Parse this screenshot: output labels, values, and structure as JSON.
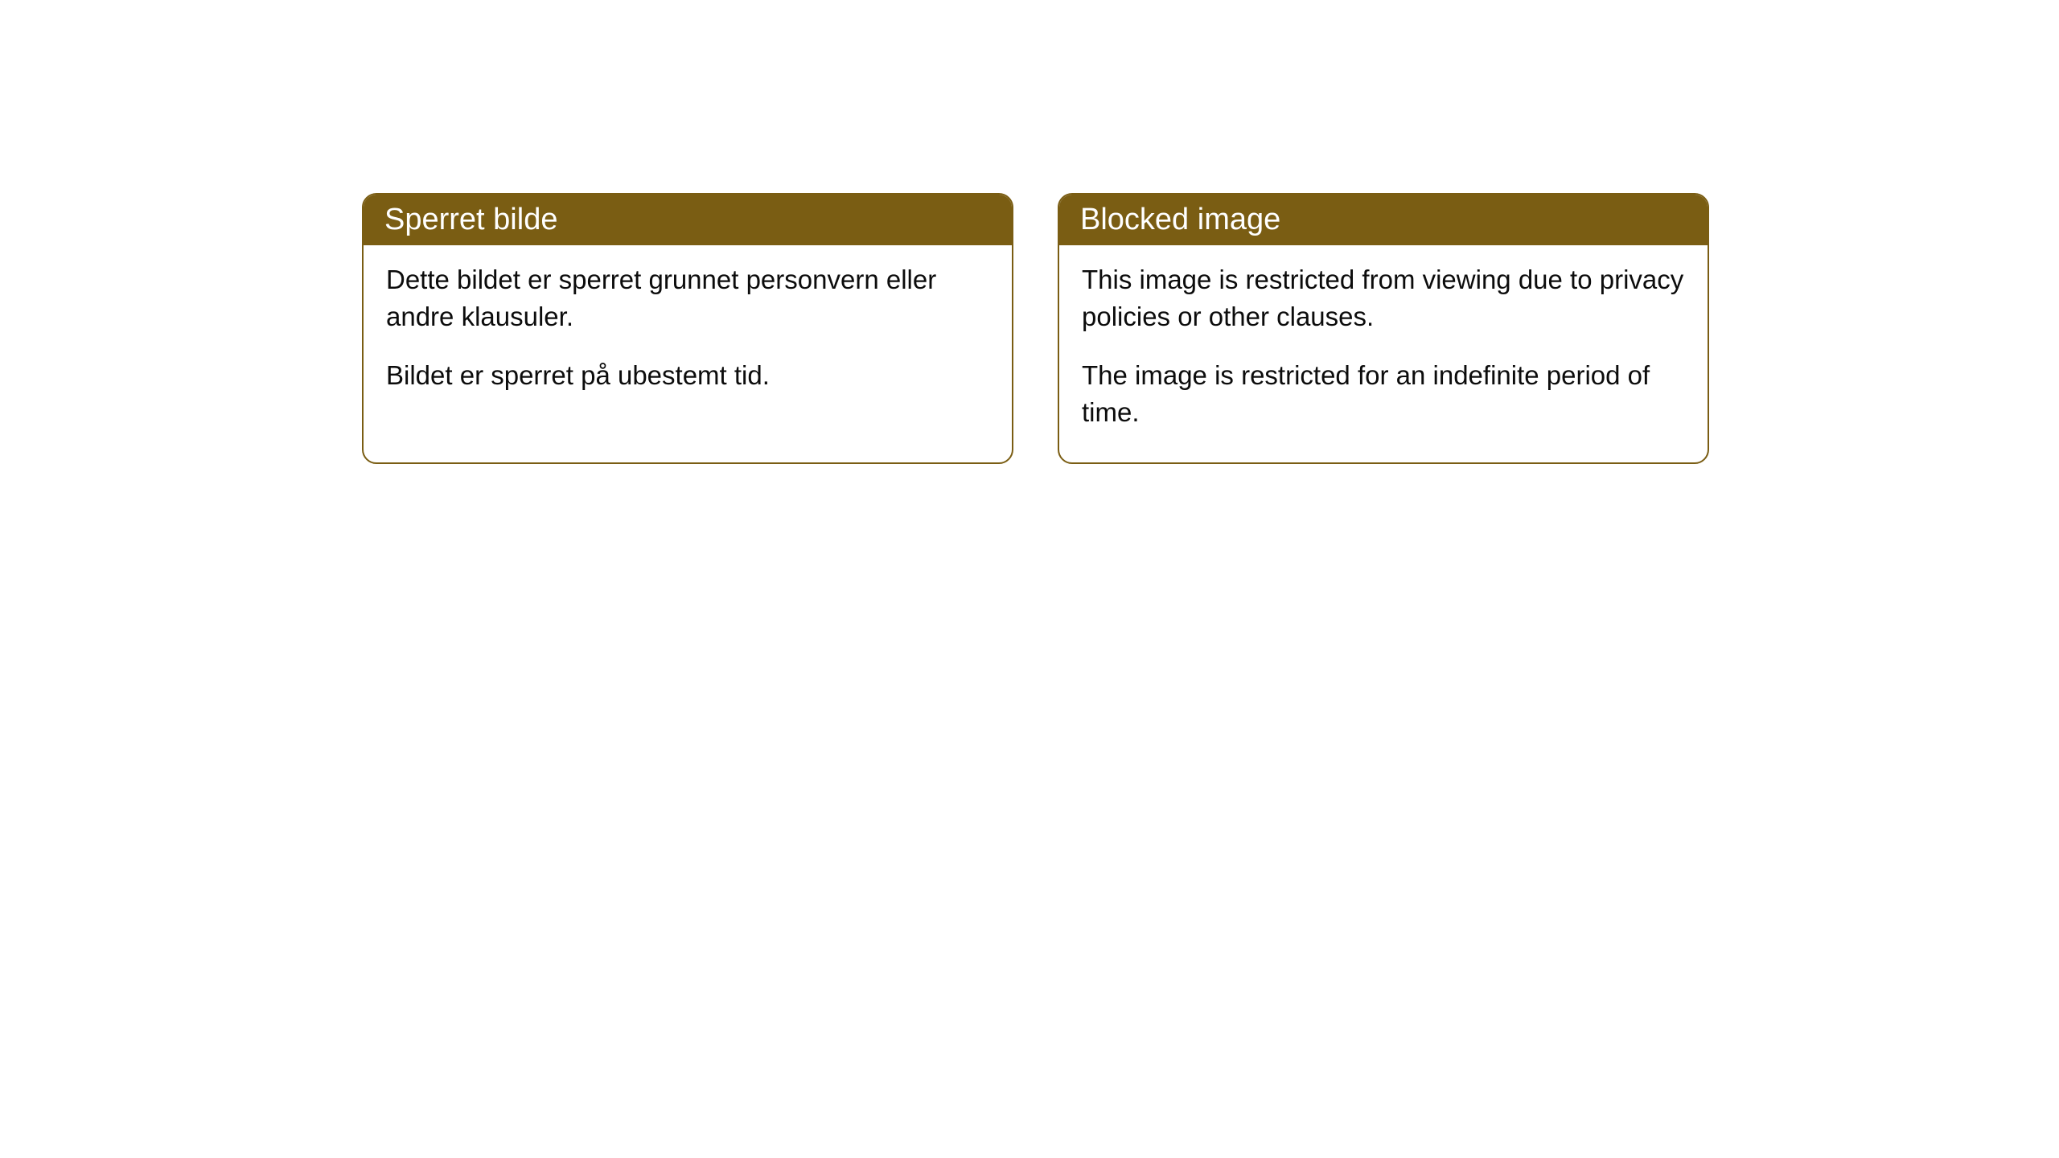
{
  "cards": [
    {
      "title": "Sperret bilde",
      "paragraph1": "Dette bildet er sperret grunnet personvern eller andre klausuler.",
      "paragraph2": "Bildet er sperret på ubestemt tid."
    },
    {
      "title": "Blocked image",
      "paragraph1": "This image is restricted from viewing due to privacy policies or other clauses.",
      "paragraph2": "The image is restricted for an indefinite period of time."
    }
  ],
  "style": {
    "header_background": "#7a5d13",
    "header_text_color": "#ffffff",
    "border_color": "#7a5d13",
    "body_background": "#ffffff",
    "body_text_color": "#0c0c0c",
    "border_radius": 18,
    "header_fontsize": 38,
    "body_fontsize": 33
  }
}
